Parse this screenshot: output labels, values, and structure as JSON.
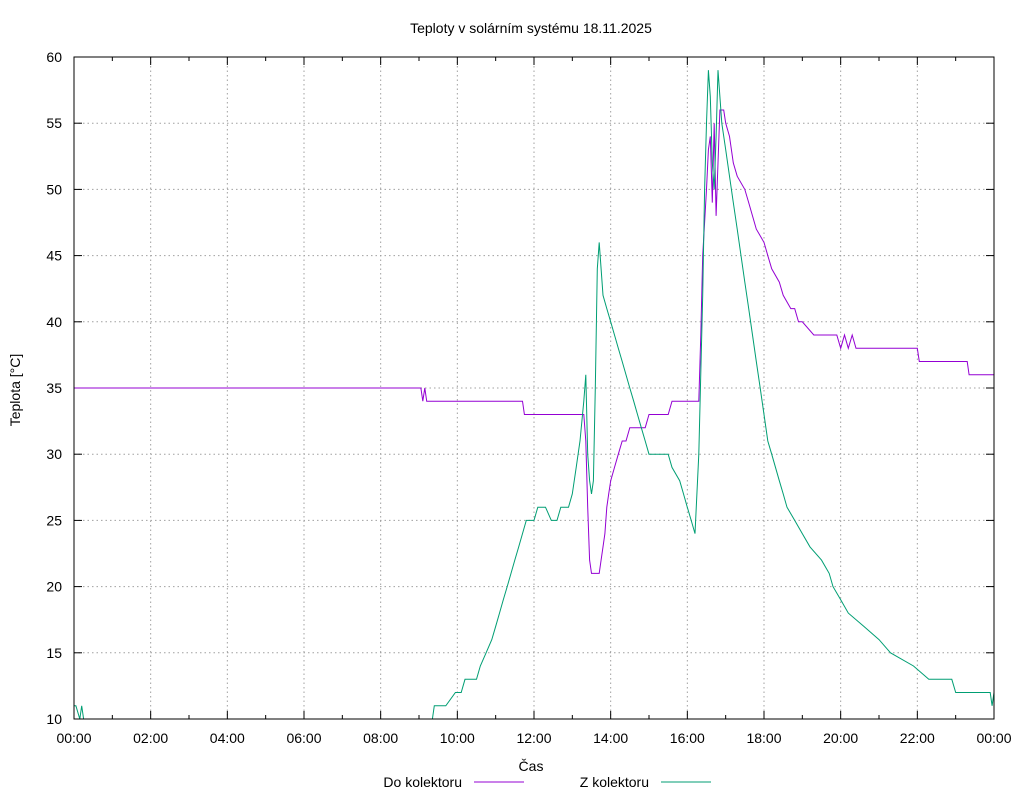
{
  "chart_data": {
    "type": "line",
    "title": "Teploty v solárním systému 18.11.2025",
    "xlabel": "Čas",
    "ylabel": "Teplota [°C]",
    "xlim": [
      0,
      24
    ],
    "ylim": [
      10,
      60
    ],
    "x_ticks": [
      "00:00",
      "02:00",
      "04:00",
      "06:00",
      "08:00",
      "10:00",
      "12:00",
      "14:00",
      "16:00",
      "18:00",
      "20:00",
      "22:00",
      "00:00"
    ],
    "y_ticks": [
      10,
      15,
      20,
      25,
      30,
      35,
      40,
      45,
      50,
      55,
      60
    ],
    "grid": true,
    "legend_position": "bottom",
    "series": [
      {
        "name": "Do kolektoru",
        "color": "#9400d3",
        "points": [
          [
            0.0,
            35
          ],
          [
            9.05,
            35
          ],
          [
            9.1,
            34
          ],
          [
            9.15,
            35
          ],
          [
            9.2,
            34
          ],
          [
            11.7,
            34
          ],
          [
            11.75,
            33
          ],
          [
            13.3,
            33
          ],
          [
            13.35,
            31
          ],
          [
            13.4,
            26
          ],
          [
            13.45,
            22
          ],
          [
            13.5,
            21
          ],
          [
            13.7,
            21
          ],
          [
            13.75,
            22
          ],
          [
            13.8,
            23
          ],
          [
            13.85,
            24
          ],
          [
            13.9,
            26
          ],
          [
            13.95,
            27
          ],
          [
            14.0,
            28
          ],
          [
            14.1,
            29
          ],
          [
            14.2,
            30
          ],
          [
            14.3,
            31
          ],
          [
            14.4,
            31
          ],
          [
            14.5,
            32
          ],
          [
            14.9,
            32
          ],
          [
            15.0,
            33
          ],
          [
            15.5,
            33
          ],
          [
            15.6,
            34
          ],
          [
            16.3,
            34
          ],
          [
            16.35,
            39
          ],
          [
            16.4,
            45
          ],
          [
            16.5,
            50
          ],
          [
            16.55,
            53
          ],
          [
            16.6,
            54
          ],
          [
            16.65,
            49
          ],
          [
            16.7,
            55
          ],
          [
            16.75,
            48
          ],
          [
            16.8,
            52
          ],
          [
            16.85,
            56
          ],
          [
            16.95,
            56
          ],
          [
            17.0,
            55
          ],
          [
            17.1,
            54
          ],
          [
            17.2,
            52
          ],
          [
            17.3,
            51
          ],
          [
            17.5,
            50
          ],
          [
            17.6,
            49
          ],
          [
            17.7,
            48
          ],
          [
            17.8,
            47
          ],
          [
            18.0,
            46
          ],
          [
            18.1,
            45
          ],
          [
            18.2,
            44
          ],
          [
            18.4,
            43
          ],
          [
            18.5,
            42
          ],
          [
            18.7,
            41
          ],
          [
            18.8,
            41
          ],
          [
            18.9,
            40
          ],
          [
            19.0,
            40
          ],
          [
            19.3,
            39
          ],
          [
            19.4,
            39
          ],
          [
            19.7,
            39
          ],
          [
            19.9,
            39
          ],
          [
            20.0,
            38
          ],
          [
            20.1,
            39
          ],
          [
            20.2,
            38
          ],
          [
            20.3,
            39
          ],
          [
            20.4,
            38
          ],
          [
            22.0,
            38
          ],
          [
            22.05,
            37
          ],
          [
            23.3,
            37
          ],
          [
            23.35,
            36
          ],
          [
            24.0,
            36
          ]
        ]
      },
      {
        "name": "Z kolektoru",
        "color": "#009e73",
        "points": [
          [
            0.0,
            11
          ],
          [
            0.05,
            11
          ],
          [
            0.15,
            10
          ],
          [
            0.2,
            11
          ],
          [
            0.25,
            10
          ],
          [
            9.35,
            10
          ],
          [
            9.4,
            11
          ],
          [
            9.5,
            11
          ],
          [
            9.7,
            11
          ],
          [
            9.95,
            12
          ],
          [
            10.1,
            12
          ],
          [
            10.2,
            13
          ],
          [
            10.5,
            13
          ],
          [
            10.6,
            14
          ],
          [
            10.75,
            15
          ],
          [
            10.9,
            16
          ],
          [
            11.0,
            17
          ],
          [
            11.1,
            18
          ],
          [
            11.2,
            19
          ],
          [
            11.3,
            20
          ],
          [
            11.4,
            21
          ],
          [
            11.5,
            22
          ],
          [
            11.6,
            23
          ],
          [
            11.7,
            24
          ],
          [
            11.8,
            25
          ],
          [
            12.0,
            25
          ],
          [
            12.1,
            26
          ],
          [
            12.3,
            26
          ],
          [
            12.45,
            25
          ],
          [
            12.6,
            25
          ],
          [
            12.7,
            26
          ],
          [
            12.9,
            26
          ],
          [
            13.0,
            27
          ],
          [
            13.1,
            29
          ],
          [
            13.2,
            31
          ],
          [
            13.3,
            34
          ],
          [
            13.35,
            36
          ],
          [
            13.4,
            30
          ],
          [
            13.45,
            28
          ],
          [
            13.5,
            27
          ],
          [
            13.55,
            28
          ],
          [
            13.6,
            35
          ],
          [
            13.65,
            44
          ],
          [
            13.7,
            46
          ],
          [
            13.75,
            44
          ],
          [
            13.8,
            42
          ],
          [
            13.9,
            41
          ],
          [
            14.0,
            40
          ],
          [
            14.1,
            39
          ],
          [
            14.2,
            38
          ],
          [
            14.3,
            37
          ],
          [
            14.4,
            36
          ],
          [
            14.5,
            35
          ],
          [
            14.6,
            34
          ],
          [
            14.7,
            33
          ],
          [
            14.8,
            32
          ],
          [
            14.9,
            31
          ],
          [
            15.0,
            30
          ],
          [
            15.5,
            30
          ],
          [
            15.6,
            29
          ],
          [
            15.8,
            28
          ],
          [
            15.9,
            27
          ],
          [
            16.0,
            26
          ],
          [
            16.1,
            25
          ],
          [
            16.2,
            24
          ],
          [
            16.3,
            30
          ],
          [
            16.4,
            42
          ],
          [
            16.45,
            50
          ],
          [
            16.5,
            55
          ],
          [
            16.55,
            59
          ],
          [
            16.6,
            57
          ],
          [
            16.65,
            52
          ],
          [
            16.7,
            50
          ],
          [
            16.75,
            54
          ],
          [
            16.8,
            59
          ],
          [
            16.85,
            57
          ],
          [
            16.9,
            55
          ],
          [
            17.0,
            53
          ],
          [
            17.1,
            51
          ],
          [
            17.2,
            49
          ],
          [
            17.3,
            47
          ],
          [
            17.4,
            45
          ],
          [
            17.5,
            43
          ],
          [
            17.6,
            41
          ],
          [
            17.7,
            39
          ],
          [
            17.8,
            37
          ],
          [
            17.9,
            35
          ],
          [
            18.0,
            33
          ],
          [
            18.1,
            31
          ],
          [
            18.2,
            30
          ],
          [
            18.4,
            28
          ],
          [
            18.5,
            27
          ],
          [
            18.6,
            26
          ],
          [
            18.8,
            25
          ],
          [
            19.0,
            24
          ],
          [
            19.2,
            23
          ],
          [
            19.5,
            22
          ],
          [
            19.7,
            21
          ],
          [
            19.8,
            20
          ],
          [
            20.0,
            19
          ],
          [
            20.2,
            18
          ],
          [
            20.6,
            17
          ],
          [
            21.0,
            16
          ],
          [
            21.3,
            15
          ],
          [
            21.9,
            14
          ],
          [
            22.3,
            13
          ],
          [
            22.9,
            13
          ],
          [
            23.0,
            12
          ],
          [
            23.9,
            12
          ],
          [
            23.95,
            11
          ],
          [
            24.0,
            12
          ]
        ]
      }
    ]
  }
}
